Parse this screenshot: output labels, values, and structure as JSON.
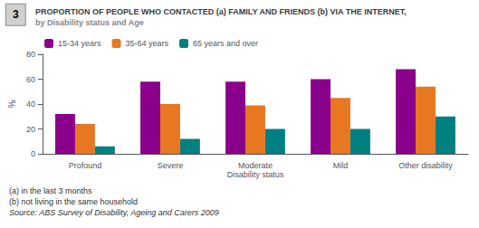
{
  "chart_data": {
    "type": "bar",
    "title": "PROPORTION OF PEOPLE WHO CONTACTED (a) FAMILY AND FRIENDS (b) VIA THE INTERNET,",
    "subtitle": "by Disability status and Age",
    "figure_number": "3",
    "xlabel": "Disability status",
    "ylabel": "%",
    "categories": [
      "Profound",
      "Severe",
      "Moderate",
      "Mild",
      "Other disability"
    ],
    "series": [
      {
        "name": "15-34 years",
        "color": "#8B008B",
        "values": [
          32,
          58,
          58,
          60,
          68
        ]
      },
      {
        "name": "35-64 years",
        "color": "#E87722",
        "values": [
          24,
          40,
          39,
          45,
          54
        ]
      },
      {
        "name": "65 years and over",
        "color": "#008080",
        "values": [
          6,
          12,
          20,
          20,
          30
        ]
      }
    ],
    "ylim": [
      0,
      80
    ],
    "yticks": [
      0,
      20,
      40,
      60,
      80
    ],
    "grid": false,
    "legend": "upper left",
    "notes": [
      "(a) in the last 3 months",
      "(b) not living in the same household"
    ],
    "source": "Source: ABS Survey of Disability, Ageing and Carers 2009"
  }
}
